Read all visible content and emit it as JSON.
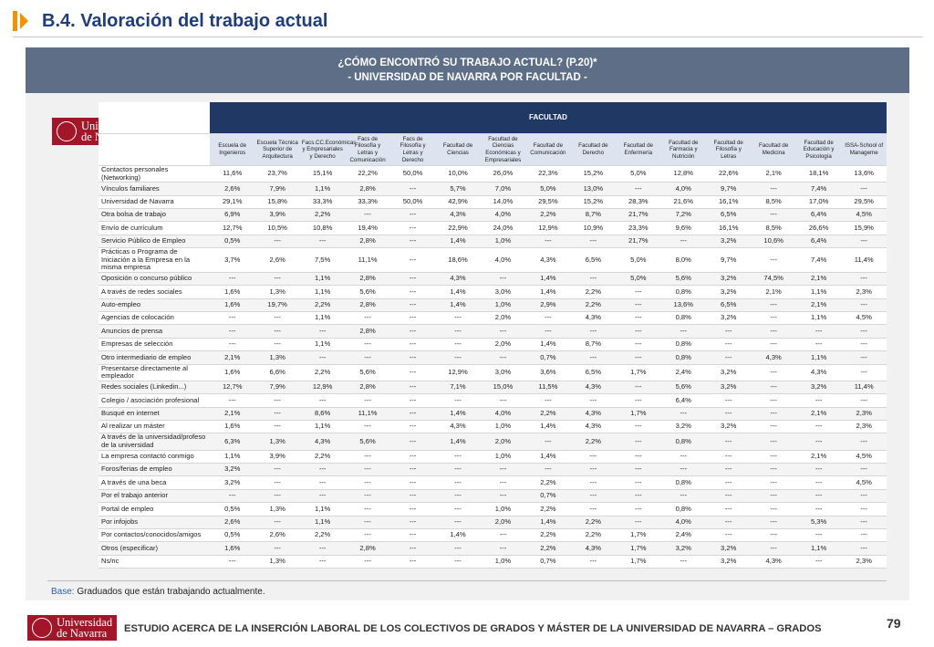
{
  "header": {
    "section": "B.4. Valoración del trabajo actual"
  },
  "banner": {
    "line1": "¿CÓMO ENCONTRÓ SU TRABAJO ACTUAL? (P.20)*",
    "line2": "- UNIVERSIDAD DE NAVARRA POR FACULTAD -"
  },
  "logo": {
    "line1": "Universidad",
    "line2": "de Navarra"
  },
  "table": {
    "group": "FACULTAD",
    "columns": [
      "Escuela de Ingenieros",
      "Escuela Técnica Superior de Arquitectura",
      "Facs.CC.Económicas y Empresariales y Derecho",
      "Facs de Filosofía y Letras y Comunicación",
      "Facs de Filosofía y Letras y Derecho",
      "Facultad de Ciencias",
      "Facultad de Ciencias Económicas y Empresariales",
      "Facultad de Comunicación",
      "Facultad de Derecho",
      "Facultad de Enfermería",
      "Facultad de Farmacia y Nutrición",
      "Facultad de Filosofía y Letras",
      "Facultad de Medicina",
      "Facultad de Educación y Psicología",
      "ISSA-School of Manageme"
    ],
    "rows": [
      {
        "label": "Contactos personales (Networking)",
        "cells": [
          "11,6%",
          "23,7%",
          "15,1%",
          "22,2%",
          "50,0%",
          "10,0%",
          "26,0%",
          "22,3%",
          "15,2%",
          "5,0%",
          "12,8%",
          "22,6%",
          "2,1%",
          "18,1%",
          "13,6%"
        ]
      },
      {
        "label": "Vínculos familiares",
        "cells": [
          "2,6%",
          "7,9%",
          "1,1%",
          "2,8%",
          "---",
          "5,7%",
          "7,0%",
          "5,0%",
          "13,0%",
          "---",
          "4,0%",
          "9,7%",
          "---",
          "7,4%",
          "---"
        ]
      },
      {
        "label": "Universidad de Navarra",
        "cells": [
          "29,1%",
          "15,8%",
          "33,3%",
          "33,3%",
          "50,0%",
          "42,9%",
          "14,0%",
          "29,5%",
          "15,2%",
          "28,3%",
          "21,6%",
          "16,1%",
          "8,5%",
          "17,0%",
          "29,5%"
        ]
      },
      {
        "label": "Otra bolsa de trabajo",
        "cells": [
          "6,9%",
          "3,9%",
          "2,2%",
          "---",
          "---",
          "4,3%",
          "4,0%",
          "2,2%",
          "8,7%",
          "21,7%",
          "7,2%",
          "6,5%",
          "---",
          "6,4%",
          "4,5%"
        ]
      },
      {
        "label": "Envío de currículum",
        "cells": [
          "12,7%",
          "10,5%",
          "10,8%",
          "19,4%",
          "---",
          "22,9%",
          "24,0%",
          "12,9%",
          "10,9%",
          "23,3%",
          "9,6%",
          "16,1%",
          "8,5%",
          "26,6%",
          "15,9%"
        ]
      },
      {
        "label": "Servicio Público de Empleo",
        "cells": [
          "0,5%",
          "---",
          "---",
          "2,8%",
          "---",
          "1,4%",
          "1,0%",
          "---",
          "---",
          "21,7%",
          "---",
          "3,2%",
          "10,6%",
          "6,4%",
          "---"
        ]
      },
      {
        "label": "Prácticas o Programa de Iniciación a la Empresa en la misma empresa",
        "cells": [
          "3,7%",
          "2,6%",
          "7,5%",
          "11,1%",
          "---",
          "18,6%",
          "4,0%",
          "4,3%",
          "6,5%",
          "5,0%",
          "8,0%",
          "9,7%",
          "---",
          "7,4%",
          "11,4%"
        ]
      },
      {
        "label": "Oposición o concurso público",
        "cells": [
          "---",
          "---",
          "1,1%",
          "2,8%",
          "---",
          "4,3%",
          "---",
          "1,4%",
          "---",
          "5,0%",
          "5,6%",
          "3,2%",
          "74,5%",
          "2,1%",
          "---"
        ]
      },
      {
        "label": "A través de redes sociales",
        "cells": [
          "1,6%",
          "1,3%",
          "1,1%",
          "5,6%",
          "---",
          "1,4%",
          "3,0%",
          "1,4%",
          "2,2%",
          "---",
          "0,8%",
          "3,2%",
          "2,1%",
          "1,1%",
          "2,3%"
        ]
      },
      {
        "label": "Auto-empleo",
        "cells": [
          "1,6%",
          "19,7%",
          "2,2%",
          "2,8%",
          "---",
          "1,4%",
          "1,0%",
          "2,9%",
          "2,2%",
          "---",
          "13,6%",
          "6,5%",
          "---",
          "2,1%",
          "---"
        ]
      },
      {
        "label": "Agencias de colocación",
        "cells": [
          "---",
          "---",
          "1,1%",
          "---",
          "---",
          "---",
          "2,0%",
          "---",
          "4,3%",
          "---",
          "0,8%",
          "3,2%",
          "---",
          "1,1%",
          "4,5%"
        ]
      },
      {
        "label": "Anuncios de prensa",
        "cells": [
          "---",
          "---",
          "---",
          "2,8%",
          "---",
          "---",
          "---",
          "---",
          "---",
          "---",
          "---",
          "---",
          "---",
          "---",
          "---"
        ]
      },
      {
        "label": "Empresas de selección",
        "cells": [
          "---",
          "---",
          "1,1%",
          "---",
          "---",
          "---",
          "2,0%",
          "1,4%",
          "8,7%",
          "---",
          "0,8%",
          "---",
          "---",
          "---",
          "---"
        ]
      },
      {
        "label": "Otro intermediario de empleo",
        "cells": [
          "2,1%",
          "1,3%",
          "---",
          "---",
          "---",
          "---",
          "---",
          "0,7%",
          "---",
          "---",
          "0,8%",
          "---",
          "4,3%",
          "1,1%",
          "---"
        ]
      },
      {
        "label": "Presentarse directamente al empleador",
        "cells": [
          "1,6%",
          "6,6%",
          "2,2%",
          "5,6%",
          "---",
          "12,9%",
          "3,0%",
          "3,6%",
          "6,5%",
          "1,7%",
          "2,4%",
          "3,2%",
          "---",
          "4,3%",
          "---"
        ]
      },
      {
        "label": "Redes sociales (Linkedin...)",
        "cells": [
          "12,7%",
          "7,9%",
          "12,9%",
          "2,8%",
          "---",
          "7,1%",
          "15,0%",
          "11,5%",
          "4,3%",
          "---",
          "5,6%",
          "3,2%",
          "---",
          "3,2%",
          "11,4%"
        ]
      },
      {
        "label": "Colegio / asociación profesional",
        "cells": [
          "---",
          "---",
          "---",
          "---",
          "---",
          "---",
          "---",
          "---",
          "---",
          "---",
          "6,4%",
          "---",
          "---",
          "---",
          "---"
        ]
      },
      {
        "label": "Busqué en internet",
        "cells": [
          "2,1%",
          "---",
          "8,6%",
          "11,1%",
          "---",
          "1,4%",
          "4,0%",
          "2,2%",
          "4,3%",
          "1,7%",
          "---",
          "---",
          "---",
          "2,1%",
          "2,3%"
        ]
      },
      {
        "label": "Al realizar un máster",
        "cells": [
          "1,6%",
          "---",
          "1,1%",
          "---",
          "---",
          "4,3%",
          "1,0%",
          "1,4%",
          "4,3%",
          "---",
          "3,2%",
          "3,2%",
          "---",
          "---",
          "2,3%"
        ]
      },
      {
        "label": "A través de la universidad/profeso de la universidad",
        "cells": [
          "6,3%",
          "1,3%",
          "4,3%",
          "5,6%",
          "---",
          "1,4%",
          "2,0%",
          "---",
          "2,2%",
          "---",
          "0,8%",
          "---",
          "---",
          "---",
          "---"
        ]
      },
      {
        "label": "La empresa contactó conmigo",
        "cells": [
          "1,1%",
          "3,9%",
          "2,2%",
          "---",
          "---",
          "---",
          "1,0%",
          "1,4%",
          "---",
          "---",
          "---",
          "---",
          "---",
          "2,1%",
          "4,5%"
        ]
      },
      {
        "label": "Foros/ferias de empleo",
        "cells": [
          "3,2%",
          "---",
          "---",
          "---",
          "---",
          "---",
          "---",
          "---",
          "---",
          "---",
          "---",
          "---",
          "---",
          "---",
          "---"
        ]
      },
      {
        "label": "A través de una beca",
        "cells": [
          "3,2%",
          "---",
          "---",
          "---",
          "---",
          "---",
          "---",
          "2,2%",
          "---",
          "---",
          "0,8%",
          "---",
          "---",
          "---",
          "4,5%"
        ]
      },
      {
        "label": "Por el trabajo anterior",
        "cells": [
          "---",
          "---",
          "---",
          "---",
          "---",
          "---",
          "---",
          "0,7%",
          "---",
          "---",
          "---",
          "---",
          "---",
          "---",
          "---"
        ]
      },
      {
        "label": "Portal de empleo",
        "cells": [
          "0,5%",
          "1,3%",
          "1,1%",
          "---",
          "---",
          "---",
          "1,0%",
          "2,2%",
          "---",
          "---",
          "0,8%",
          "---",
          "---",
          "---",
          "---"
        ]
      },
      {
        "label": "Por infojobs",
        "cells": [
          "2,6%",
          "---",
          "1,1%",
          "---",
          "---",
          "---",
          "2,0%",
          "1,4%",
          "2,2%",
          "---",
          "4,0%",
          "---",
          "---",
          "5,3%",
          "---"
        ]
      },
      {
        "label": "Por contactos/conocidos/amigos",
        "cells": [
          "0,5%",
          "2,6%",
          "2,2%",
          "---",
          "---",
          "1,4%",
          "---",
          "2,2%",
          "2,2%",
          "1,7%",
          "2,4%",
          "---",
          "---",
          "---",
          "---"
        ]
      },
      {
        "label": "Otros (especificar)",
        "cells": [
          "1,6%",
          "---",
          "---",
          "2,8%",
          "---",
          "---",
          "---",
          "2,2%",
          "4,3%",
          "1,7%",
          "3,2%",
          "3,2%",
          "---",
          "1,1%",
          "---"
        ]
      },
      {
        "label": "Ns/nc",
        "cells": [
          "---",
          "1,3%",
          "---",
          "---",
          "---",
          "---",
          "1,0%",
          "0,7%",
          "---",
          "1,7%",
          "---",
          "3,2%",
          "4,3%",
          "---",
          "2,3%"
        ]
      }
    ]
  },
  "base": {
    "label": "Base:",
    "text": "Graduados que están trabajando actualmente."
  },
  "footer": {
    "text": "ESTUDIO ACERCA DE LA INSERCIÓN LABORAL DE LOS COLECTIVOS DE GRADOS Y MÁSTER DE LA UNIVERSIDAD DE NAVARRA – GRADOS",
    "page": "79"
  }
}
